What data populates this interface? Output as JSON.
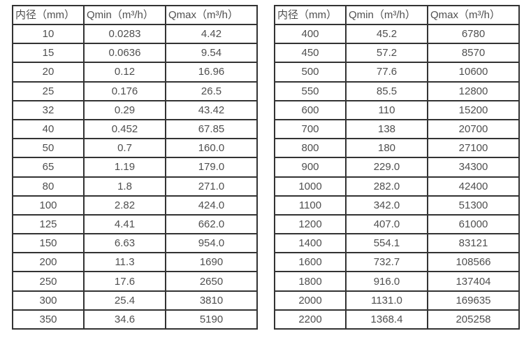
{
  "colors": {
    "background": "#ffffff",
    "border": "#333333",
    "text": "#4f4f4f"
  },
  "tables": [
    {
      "name": "small-diameters",
      "headers": [
        "内径（mm）",
        "Qmin（m³/h）",
        "Qmax（m³/h）"
      ],
      "rows": [
        [
          "10",
          "0.0283",
          "4.42"
        ],
        [
          "15",
          "0.0636",
          "9.54"
        ],
        [
          "20",
          "0.12",
          "16.96"
        ],
        [
          "25",
          "0.176",
          "26.5"
        ],
        [
          "32",
          "0.29",
          "43.42"
        ],
        [
          "40",
          "0.452",
          "67.85"
        ],
        [
          "50",
          "0.7",
          "160.0"
        ],
        [
          "65",
          "1.19",
          "179.0"
        ],
        [
          "80",
          "1.8",
          "271.0"
        ],
        [
          "100",
          "2.82",
          "424.0"
        ],
        [
          "125",
          "4.41",
          "662.0"
        ],
        [
          "150",
          "6.63",
          "954.0"
        ],
        [
          "200",
          "11.3",
          "1690"
        ],
        [
          "250",
          "17.6",
          "2650"
        ],
        [
          "300",
          "25.4",
          "3810"
        ],
        [
          "350",
          "34.6",
          "5190"
        ]
      ]
    },
    {
      "name": "large-diameters",
      "headers": [
        "内径（mm）",
        "Qmin（m³/h）",
        "Qmax（m³/h）"
      ],
      "rows": [
        [
          "400",
          "45.2",
          "6780"
        ],
        [
          "450",
          "57.2",
          "8570"
        ],
        [
          "500",
          "77.6",
          "10600"
        ],
        [
          "550",
          "85.5",
          "12800"
        ],
        [
          "600",
          "110",
          "15200"
        ],
        [
          "700",
          "138",
          "20700"
        ],
        [
          "800",
          "180",
          "27100"
        ],
        [
          "900",
          "229.0",
          "34300"
        ],
        [
          "1000",
          "282.0",
          "42400"
        ],
        [
          "1100",
          "342.0",
          "51300"
        ],
        [
          "1200",
          "407.0",
          "61000"
        ],
        [
          "1400",
          "554.1",
          "83121"
        ],
        [
          "1600",
          "732.7",
          "108566"
        ],
        [
          "1800",
          "916.0",
          "137404"
        ],
        [
          "2000",
          "1131.0",
          "169635"
        ],
        [
          "2200",
          "1368.4",
          "205258"
        ]
      ]
    }
  ]
}
